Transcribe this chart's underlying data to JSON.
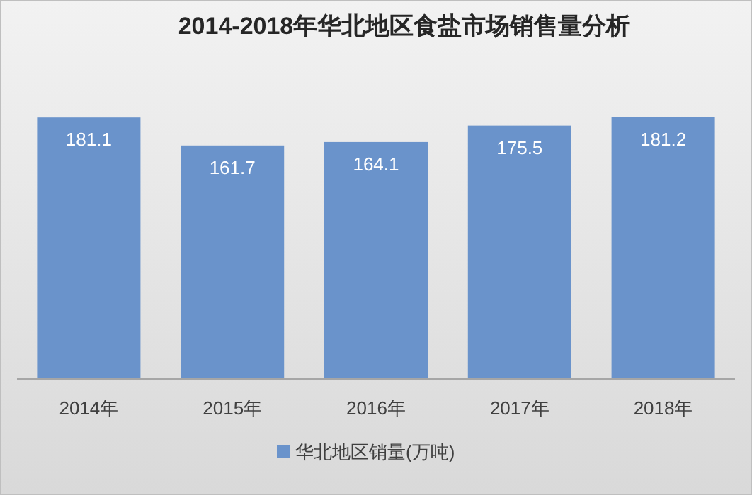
{
  "chart_data": {
    "type": "bar",
    "title": "2014-2018年华北地区食盐市场销售量分析",
    "categories": [
      "2014年",
      "2015年",
      "2016年",
      "2017年",
      "2018年"
    ],
    "series": [
      {
        "name": "华北地区销量(万吨)",
        "color": "#6a93cb",
        "values": [
          181.1,
          161.7,
          164.1,
          175.5,
          181.2
        ]
      }
    ],
    "data_labels": true,
    "legend": "bottom"
  }
}
